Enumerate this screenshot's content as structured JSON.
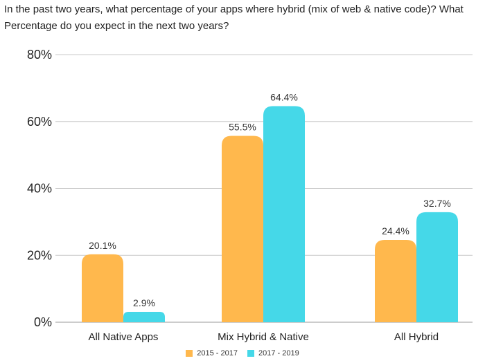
{
  "chart_data": {
    "type": "bar",
    "title": "In the past two years, what percentage of your apps where hybrid (mix of web & native code)? What Percentage do you expect in the next two years?",
    "categories": [
      "All Native Apps",
      "Mix Hybrid & Native",
      "All Hybrid"
    ],
    "series": [
      {
        "name": "2015 - 2017",
        "values": [
          20.1,
          55.5,
          24.4
        ],
        "labels": [
          "20.1%",
          "55.5%",
          "24.4%"
        ],
        "color": "#FFB84D"
      },
      {
        "name": "2017 - 2019",
        "values": [
          2.9,
          64.4,
          32.7
        ],
        "labels": [
          "2.9%",
          "64.4%",
          "32.7%"
        ],
        "color": "#45D8E8"
      }
    ],
    "yticks": [
      0,
      20,
      40,
      60,
      80
    ],
    "ytick_labels": [
      "0%",
      "20%",
      "40%",
      "60%",
      "80%"
    ],
    "ylim": [
      0,
      80
    ],
    "xlabel": "",
    "ylabel": "",
    "grid": true,
    "legend_position": "bottom"
  }
}
